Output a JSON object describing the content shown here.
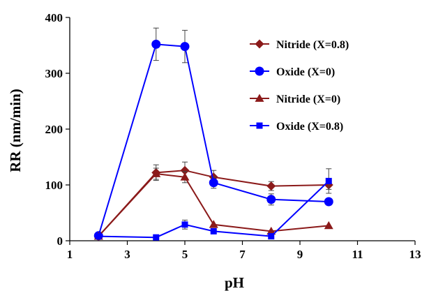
{
  "chart_data": {
    "type": "line",
    "title": "",
    "xlabel": "pH",
    "ylabel": "RR (nm/min)",
    "xlim": [
      1,
      13
    ],
    "ylim": [
      0,
      400
    ],
    "x_ticks": [
      "1",
      "3",
      "5",
      "7",
      "9",
      "11",
      "13"
    ],
    "y_ticks": [
      "0",
      "100",
      "200",
      "300",
      "400"
    ],
    "grid": false,
    "legend_position": "top-right",
    "series": [
      {
        "name": "Nitride (X=0.8)",
        "marker": "diamond",
        "color": "#8B1A1A",
        "x": [
          2,
          4,
          5,
          6,
          8,
          10
        ],
        "y": [
          8,
          122,
          126,
          114,
          98,
          100
        ],
        "err": [
          0,
          14,
          15,
          12,
          8,
          8
        ]
      },
      {
        "name": "Oxide (X=0)",
        "marker": "circle",
        "color": "#0000FF",
        "x": [
          2,
          4,
          5,
          6,
          8,
          10
        ],
        "y": [
          9,
          352,
          348,
          104,
          74,
          70
        ],
        "err": [
          0,
          29,
          29,
          10,
          10,
          0
        ]
      },
      {
        "name": "Nitride (X=0)",
        "marker": "triangle",
        "color": "#8B1A1A",
        "x": [
          2,
          4,
          5,
          6,
          8,
          10
        ],
        "y": [
          8,
          120,
          114,
          29,
          17,
          27
        ],
        "err": [
          0,
          10,
          10,
          0,
          0,
          0
        ]
      },
      {
        "name": "Oxide (X=0.8)",
        "marker": "square",
        "color": "#0000FF",
        "x": [
          2,
          4,
          5,
          6,
          8,
          10
        ],
        "y": [
          8,
          6,
          29,
          17,
          8,
          107
        ],
        "err": [
          0,
          0,
          8,
          0,
          0,
          22
        ]
      }
    ]
  }
}
